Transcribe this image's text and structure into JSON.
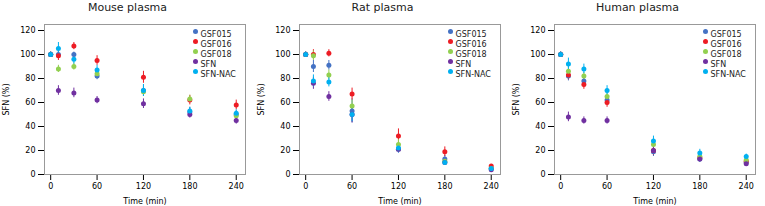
{
  "chart_data": [
    {
      "type": "scatter",
      "title": "Mouse plasma",
      "xlabel": "Time (min)",
      "ylabel": "SFN (%)",
      "x": [
        0,
        10,
        30,
        60,
        120,
        180,
        240
      ],
      "xlim": [
        -8,
        252
      ],
      "xticks": [
        0,
        60,
        120,
        180,
        240
      ],
      "ylim": [
        0,
        125
      ],
      "yticks": [
        0,
        20,
        40,
        60,
        80,
        100,
        120
      ],
      "legend": "upper right",
      "marker": "o",
      "series": [
        {
          "name": "GSF015",
          "color": "#4472c4",
          "values": [
            100,
            100,
            100,
            82,
            70,
            52,
            50
          ],
          "yerr": [
            2,
            3,
            2,
            3,
            5,
            4,
            3
          ]
        },
        {
          "name": "GSF016",
          "color": "#ed1c24",
          "values": [
            100,
            99,
            107,
            95,
            81,
            62,
            58
          ],
          "yerr": [
            2,
            4,
            3,
            4,
            5,
            4,
            4
          ]
        },
        {
          "name": "GSF018",
          "color": "#92d050",
          "values": [
            100,
            88,
            90,
            84,
            69,
            63,
            49
          ],
          "yerr": [
            2,
            3,
            3,
            4,
            4,
            3,
            3
          ]
        },
        {
          "name": "SFN",
          "color": "#7030a0",
          "values": [
            100,
            70,
            68,
            62,
            59,
            50,
            45
          ],
          "yerr": [
            2,
            4,
            4,
            3,
            4,
            3,
            3
          ]
        },
        {
          "name": "SFN-NAC",
          "color": "#00b0f0",
          "values": [
            100,
            105,
            96,
            87,
            70,
            53,
            51
          ],
          "yerr": [
            2,
            5,
            4,
            4,
            5,
            3,
            3
          ]
        }
      ]
    },
    {
      "type": "scatter",
      "title": "Rat plasma",
      "xlabel": "Time (min)",
      "ylabel": "SFN (%)",
      "x": [
        0,
        10,
        30,
        60,
        120,
        180,
        240
      ],
      "xlim": [
        -8,
        252
      ],
      "xticks": [
        0,
        60,
        120,
        180,
        240
      ],
      "ylim": [
        0,
        125
      ],
      "yticks": [
        0,
        20,
        40,
        60,
        80,
        100,
        120
      ],
      "legend": "upper right",
      "marker": "o",
      "series": [
        {
          "name": "GSF015",
          "color": "#4472c4",
          "values": [
            100,
            90,
            91,
            53,
            21,
            13,
            5
          ],
          "yerr": [
            2,
            5,
            4,
            10,
            3,
            3,
            1
          ]
        },
        {
          "name": "GSF016",
          "color": "#ed1c24",
          "values": [
            100,
            100,
            101,
            67,
            32,
            19,
            7
          ],
          "yerr": [
            2,
            4,
            3,
            5,
            6,
            4,
            1
          ]
        },
        {
          "name": "GSF018",
          "color": "#92d050",
          "values": [
            100,
            99,
            83,
            57,
            25,
            11,
            5
          ],
          "yerr": [
            2,
            4,
            4,
            5,
            4,
            3,
            1
          ]
        },
        {
          "name": "SFN",
          "color": "#7030a0",
          "values": [
            100,
            76,
            65,
            50,
            21,
            10,
            4
          ],
          "yerr": [
            2,
            5,
            4,
            7,
            3,
            2,
            1
          ]
        },
        {
          "name": "SFN-NAC",
          "color": "#00b0f0",
          "values": [
            100,
            78,
            77,
            50,
            22,
            10,
            5
          ],
          "yerr": [
            2,
            5,
            4,
            6,
            4,
            2,
            1
          ]
        }
      ]
    },
    {
      "type": "scatter",
      "title": "Human plasma",
      "xlabel": "Time (min)",
      "ylabel": "SFN (%)",
      "x": [
        0,
        10,
        30,
        60,
        120,
        180,
        240
      ],
      "xlim": [
        -8,
        252
      ],
      "xticks": [
        0,
        60,
        120,
        180,
        240
      ],
      "ylim": [
        0,
        125
      ],
      "yticks": [
        0,
        20,
        40,
        60,
        80,
        100,
        120
      ],
      "legend": "upper right",
      "marker": "o",
      "series": [
        {
          "name": "GSF015",
          "color": "#4472c4",
          "values": [
            100,
            82,
            78,
            62,
            19,
            13,
            10
          ],
          "yerr": [
            2,
            4,
            4,
            4,
            4,
            3,
            2
          ]
        },
        {
          "name": "GSF016",
          "color": "#ed1c24",
          "values": [
            100,
            83,
            75,
            60,
            20,
            14,
            11
          ],
          "yerr": [
            2,
            4,
            4,
            4,
            4,
            3,
            2
          ]
        },
        {
          "name": "GSF018",
          "color": "#92d050",
          "values": [
            100,
            86,
            82,
            65,
            25,
            15,
            12
          ],
          "yerr": [
            2,
            4,
            3,
            4,
            3,
            3,
            2
          ]
        },
        {
          "name": "SFN",
          "color": "#7030a0",
          "values": [
            100,
            48,
            45,
            45,
            20,
            13,
            9
          ],
          "yerr": [
            2,
            4,
            3,
            3,
            3,
            2,
            2
          ]
        },
        {
          "name": "SFN-NAC",
          "color": "#00b0f0",
          "values": [
            100,
            92,
            88,
            70,
            28,
            18,
            15
          ],
          "yerr": [
            2,
            5,
            4,
            4,
            4,
            3,
            2
          ]
        }
      ]
    }
  ]
}
